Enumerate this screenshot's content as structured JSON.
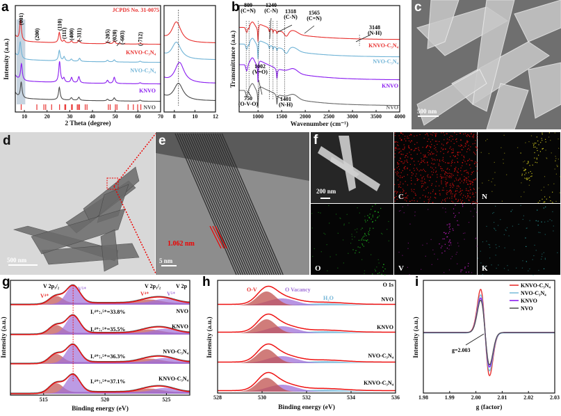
{
  "panels": {
    "a": "a",
    "b": "b",
    "c": "c",
    "d": "d",
    "e": "e",
    "f": "f",
    "g": "g",
    "h": "h",
    "i": "i"
  },
  "images": {
    "c": {
      "scale_bar": "500 nm"
    },
    "d": {
      "scale_bar": "500 nm"
    },
    "e": {
      "scale_bar": "5 nm",
      "lattice_spacing": "1.062 nm"
    },
    "f": {
      "scale_bar": "200 nm",
      "maps": [
        "C",
        "N",
        "O",
        "V",
        "K"
      ],
      "map_colors": [
        "#e01010",
        "#d8d020",
        "#20c020",
        "#d020d0",
        "#30b0b0"
      ]
    }
  },
  "chart_data": [
    {
      "id": "a",
      "type": "line",
      "title": "",
      "xlabel": "2 Theta (degree)",
      "ylabel": "Intensity (a.u.)",
      "xlim": [
        6,
        70
      ],
      "xticks": [
        10,
        20,
        30,
        40,
        50,
        60,
        70
      ],
      "reference": {
        "label": "JCPDS No. 31-0075",
        "color": "#e8312f",
        "positions": [
          8.6,
          15.5,
          18.6,
          19.4,
          22,
          25.5,
          27.8,
          28.2,
          30.8,
          31.1,
          33.3,
          33.8,
          34.3,
          36.8,
          37.6,
          47,
          47.8,
          50.1,
          50.8,
          55.7,
          58,
          59.9,
          61.3
        ]
      },
      "hkl": [
        {
          "label": "(001)",
          "x": 8.5
        },
        {
          "label": "(200)",
          "x": 15.5
        },
        {
          "label": "(110)",
          "x": 25.4
        },
        {
          "label": "(111)",
          "x": 27.5
        },
        {
          "label": "(400)",
          "x": 30.7
        },
        {
          "label": "(-311)",
          "x": 34
        },
        {
          "label": "(-205)",
          "x": 46.6
        },
        {
          "label": "(020)",
          "x": 49.6
        },
        {
          "label": "(-603)",
          "x": 53
        },
        {
          "label": "(-712)",
          "x": 61
        }
      ],
      "series": [
        {
          "name": "KNVO-C₃N₄",
          "color": "#e8312f",
          "peaks": [
            [
              8.3,
              1.0
            ],
            [
              25.4,
              0.5
            ],
            [
              27.5,
              0.12
            ],
            [
              30.7,
              0.1
            ],
            [
              34,
              0.15
            ],
            [
              46.6,
              0.1
            ],
            [
              49.6,
              0.15
            ],
            [
              61,
              0.05
            ]
          ]
        },
        {
          "name": "NVO-C₃N₄",
          "color": "#6fb3d6",
          "peaks": [
            [
              8.2,
              0.8
            ],
            [
              25.4,
              0.5
            ],
            [
              27.5,
              0.2
            ],
            [
              30.7,
              0.1
            ],
            [
              34.3,
              0.15
            ],
            [
              46.6,
              0.08
            ],
            [
              49.6,
              0.1
            ],
            [
              61,
              0.05
            ]
          ]
        },
        {
          "name": "KNVO",
          "color": "#8a1cf0",
          "peaks": [
            [
              8.7,
              0.8
            ],
            [
              25.5,
              1.0
            ],
            [
              27.4,
              0.2
            ],
            [
              30.8,
              0.25
            ],
            [
              34,
              0.3
            ],
            [
              46.6,
              0.15
            ],
            [
              49.6,
              0.3
            ],
            [
              61,
              0.05
            ]
          ]
        },
        {
          "name": "NVO",
          "color": "#4a4a4a",
          "peaks": [
            [
              8.6,
              0.75
            ],
            [
              25.4,
              0.6
            ],
            [
              30.7,
              0.12
            ],
            [
              34,
              0.15
            ],
            [
              46.6,
              0.08
            ],
            [
              49.6,
              0.15
            ],
            [
              61,
              0.05
            ]
          ]
        }
      ],
      "inset": {
        "xlim": [
          7,
          12
        ],
        "xticks": [
          8,
          10,
          12
        ],
        "ref_line": 8.4,
        "peak_centers": [
          8.2,
          8.2,
          8.5,
          8.4
        ],
        "peak_heights": [
          1.0,
          0.83,
          1.0,
          0.83
        ]
      }
    },
    {
      "id": "b",
      "type": "line",
      "xlabel": "Wavenumber (cm⁻¹)",
      "ylabel": "Transmittance (a.u.)",
      "xlim": [
        600,
        4000
      ],
      "xticks": [
        1000,
        1500,
        2000,
        2500,
        3000,
        3500,
        4000
      ],
      "series": [
        {
          "name": "KNVO-C₃N₄",
          "color": "#e8312f"
        },
        {
          "name": "NVO-C₃N₄",
          "color": "#6fb3d6"
        },
        {
          "name": "KNVO",
          "color": "#8a1cf0"
        },
        {
          "name": "NVO",
          "color": "#6a6a6a"
        }
      ],
      "annotations": [
        {
          "wn": "809",
          "assign": "(C=N)"
        },
        {
          "wn": "1240",
          "assign": "(C-N)"
        },
        {
          "wn": "1318",
          "assign": "(C-N)"
        },
        {
          "wn": "1565",
          "assign": "(C=N)"
        },
        {
          "wn": "3148",
          "assign": "(N-H)"
        },
        {
          "wn": "750",
          "assign": "(O-V-O)"
        },
        {
          "wn": "1002",
          "assign": "(V=O)"
        },
        {
          "wn": "1401",
          "assign": "(N-H)"
        }
      ]
    },
    {
      "id": "g",
      "type": "line",
      "xlabel": "Binding energy (eV)",
      "ylabel": "Intensity (a.u.)",
      "xlim": [
        512.3,
        526.9
      ],
      "xticks": [
        515,
        520,
        525
      ],
      "labels": {
        "p32": "V 2p₃/₂",
        "p12": "V 2p₁/₂",
        "v2p": "V 2p",
        "v4": "V⁴⁺",
        "v5": "V⁵⁺",
        "v4b": "V⁴⁺",
        "v5b": "V⁵⁺"
      },
      "components": {
        "V4+_2p3/2": 516.0,
        "V5+_2p3/2": 517.4,
        "V4+_2p1/2": 523.6,
        "V5+_2p1/2": 524.9
      },
      "series": [
        {
          "name": "NVO",
          "ratio": "Iᵥ⁴⁺:ᵥ⁵⁺=33.8%",
          "v4_ratio_percent": 33.8
        },
        {
          "name": "KNVO",
          "ratio": "Iᵥ⁴⁺:ᵥ⁵⁺=35.5%",
          "v4_ratio_percent": 35.5
        },
        {
          "name": "NVO-C₃N₄",
          "ratio": "Iᵥ⁴⁺:ᵥ⁵⁺=36.3%",
          "v4_ratio_percent": 36.3
        },
        {
          "name": "KNVO-C₃N₄",
          "ratio": "Iᵥ⁴⁺:ᵥ⁵⁺=37.1%",
          "v4_ratio_percent": 37.1
        }
      ],
      "colors": {
        "v4": "#c0504d",
        "v5": "#a070d8",
        "fit": "#ee1111",
        "raw": "#555555"
      }
    },
    {
      "id": "h",
      "type": "line",
      "xlabel": "Binding energy (eV)",
      "ylabel": "Intensity (a.u.)",
      "xlim": [
        528,
        536
      ],
      "xticks": [
        528,
        530,
        532,
        534,
        536
      ],
      "labels": {
        "ov": "O-V",
        "vac": "O Vacancy",
        "h2o": "H₂O",
        "o1s": "O 1s"
      },
      "components": {
        "O-V": 530.2,
        "O Vacancy": 530.9,
        "H2O": 532.8
      },
      "series": [
        {
          "name": "NVO"
        },
        {
          "name": "KNVO"
        },
        {
          "name": "NVO-C₃N₄"
        },
        {
          "name": "KNVO-C₃N₄"
        }
      ],
      "colors": {
        "ov": "#c0504d",
        "vac": "#a070d8",
        "h2o": "#6fb3d6",
        "fit": "#ee1111"
      }
    },
    {
      "id": "i",
      "type": "line",
      "xlabel": "g (factor)",
      "ylabel": "Intensity (a.u.)",
      "xlim": [
        1.98,
        2.03
      ],
      "xticks": [
        "1.98",
        "1.99",
        "2.00",
        "2.01",
        "2.02",
        "2.03"
      ],
      "annotation": "g=2.003",
      "g_value": 2.003,
      "legend_position": "top-right",
      "series": [
        {
          "name": "KNVO-C₃N₄",
          "color": "#e8312f",
          "amplitude": 1.0
        },
        {
          "name": "NVO-C₃N₄",
          "color": "#7ec0dc",
          "amplitude": 0.88
        },
        {
          "name": "KNVO",
          "color": "#8a1cf0",
          "amplitude": 0.8
        },
        {
          "name": "NVO",
          "color": "#555555",
          "amplitude": 0.75
        }
      ]
    }
  ]
}
